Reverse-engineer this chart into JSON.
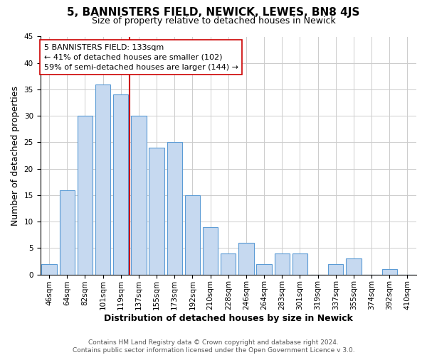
{
  "title": "5, BANNISTERS FIELD, NEWICK, LEWES, BN8 4JS",
  "subtitle": "Size of property relative to detached houses in Newick",
  "xlabel": "Distribution of detached houses by size in Newick",
  "ylabel": "Number of detached properties",
  "bar_labels": [
    "46sqm",
    "64sqm",
    "82sqm",
    "101sqm",
    "119sqm",
    "137sqm",
    "155sqm",
    "173sqm",
    "192sqm",
    "210sqm",
    "228sqm",
    "246sqm",
    "264sqm",
    "283sqm",
    "301sqm",
    "319sqm",
    "337sqm",
    "355sqm",
    "374sqm",
    "392sqm",
    "410sqm"
  ],
  "bar_heights": [
    2,
    16,
    30,
    36,
    34,
    30,
    24,
    25,
    15,
    9,
    4,
    6,
    2,
    4,
    4,
    0,
    2,
    3,
    0,
    1,
    0
  ],
  "bar_color": "#c6d9f0",
  "bar_edge_color": "#5b9bd5",
  "vline_x_index": 5,
  "vline_color": "#cc0000",
  "annotation_lines": [
    "5 BANNISTERS FIELD: 133sqm",
    "← 41% of detached houses are smaller (102)",
    "59% of semi-detached houses are larger (144) →"
  ],
  "annotation_box_color": "#ffffff",
  "annotation_box_edge_color": "#cc0000",
  "ylim": [
    0,
    45
  ],
  "yticks": [
    0,
    5,
    10,
    15,
    20,
    25,
    30,
    35,
    40,
    45
  ],
  "footer_line1": "Contains HM Land Registry data © Crown copyright and database right 2024.",
  "footer_line2": "Contains public sector information licensed under the Open Government Licence v 3.0.",
  "title_fontsize": 11,
  "subtitle_fontsize": 9,
  "axis_label_fontsize": 9,
  "tick_fontsize": 7.5,
  "annotation_fontsize": 8,
  "footer_fontsize": 6.5
}
